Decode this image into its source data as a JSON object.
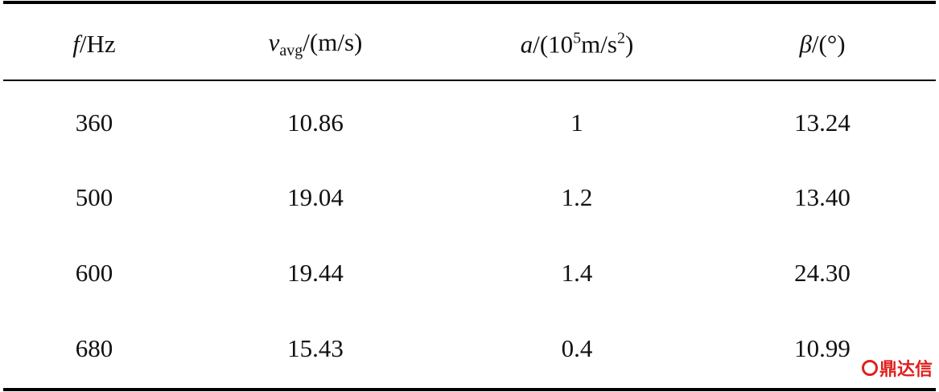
{
  "table": {
    "header": [
      [
        {
          "text": "f",
          "style": "italic"
        },
        {
          "text": "/Hz"
        }
      ],
      [
        {
          "text": "v",
          "style": "italic"
        },
        {
          "text": "avg",
          "style": "sub"
        },
        {
          "text": "/(m/s)"
        }
      ],
      [
        {
          "text": "a",
          "style": "italic"
        },
        {
          "text": "/(10"
        },
        {
          "text": "5",
          "style": "sup"
        },
        {
          "text": "m/s"
        },
        {
          "text": "2",
          "style": "sup"
        },
        {
          "text": ")"
        }
      ],
      [
        {
          "text": "β",
          "style": "italic"
        },
        {
          "text": "/(°)"
        }
      ]
    ],
    "rows": [
      [
        "360",
        "10.86",
        "1",
        "13.24"
      ],
      [
        "500",
        "19.04",
        "1.2",
        "13.40"
      ],
      [
        "600",
        "19.44",
        "1.4",
        "24.30"
      ],
      [
        "680",
        "15.43",
        "0.4",
        "10.99"
      ]
    ]
  },
  "watermark": "鼎达信"
}
